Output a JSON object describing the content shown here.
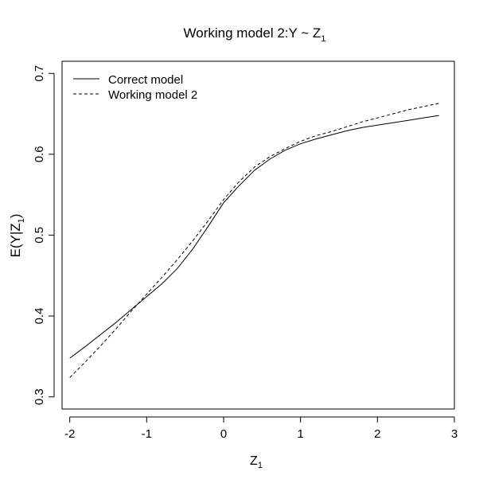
{
  "chart_data": {
    "type": "line",
    "title": "Working model 2:Y ~ Z",
    "title_subscript": "1",
    "xlabel": "Z",
    "xlabel_subscript": "1",
    "ylabel_prefix": "E(Y|Z",
    "ylabel_subscript": "1",
    "ylabel_suffix": ")",
    "xlim": [
      -2.1,
      3.0
    ],
    "ylim": [
      0.285,
      0.715
    ],
    "xticks": [
      -2,
      -1,
      0,
      1,
      2,
      3
    ],
    "yticks": [
      0.3,
      0.4,
      0.5,
      0.6,
      0.7
    ],
    "xtick_labels": [
      "-2",
      "-1",
      "0",
      "1",
      "2",
      "3"
    ],
    "ytick_labels": [
      "0.3",
      "0.4",
      "0.5",
      "0.6",
      "0.7"
    ],
    "grid": false,
    "legend_position": "top-left",
    "series": [
      {
        "name": "Correct model",
        "line_style": "solid",
        "x": [
          -2.0,
          -1.8,
          -1.6,
          -1.4,
          -1.2,
          -1.0,
          -0.8,
          -0.6,
          -0.4,
          -0.2,
          0.0,
          0.2,
          0.4,
          0.6,
          0.8,
          1.0,
          1.2,
          1.4,
          1.6,
          1.8,
          2.0,
          2.2,
          2.4,
          2.6,
          2.8
        ],
        "y": [
          0.348,
          0.362,
          0.377,
          0.392,
          0.408,
          0.424,
          0.44,
          0.459,
          0.483,
          0.511,
          0.54,
          0.561,
          0.58,
          0.594,
          0.605,
          0.613,
          0.619,
          0.624,
          0.629,
          0.633,
          0.636,
          0.639,
          0.642,
          0.645,
          0.648
        ],
        "color": "#000000"
      },
      {
        "name": "Working model 2",
        "line_style": "dashed",
        "x": [
          -2.0,
          -1.8,
          -1.6,
          -1.4,
          -1.2,
          -1.0,
          -0.8,
          -0.6,
          -0.4,
          -0.2,
          0.0,
          0.2,
          0.4,
          0.6,
          0.8,
          1.0,
          1.2,
          1.4,
          1.6,
          1.8,
          2.0,
          2.2,
          2.4,
          2.6,
          2.8
        ],
        "y": [
          0.324,
          0.343,
          0.363,
          0.384,
          0.406,
          0.427,
          0.448,
          0.47,
          0.493,
          0.518,
          0.544,
          0.566,
          0.584,
          0.597,
          0.607,
          0.616,
          0.623,
          0.628,
          0.634,
          0.64,
          0.645,
          0.65,
          0.655,
          0.659,
          0.663
        ],
        "color": "#000000"
      }
    ]
  }
}
